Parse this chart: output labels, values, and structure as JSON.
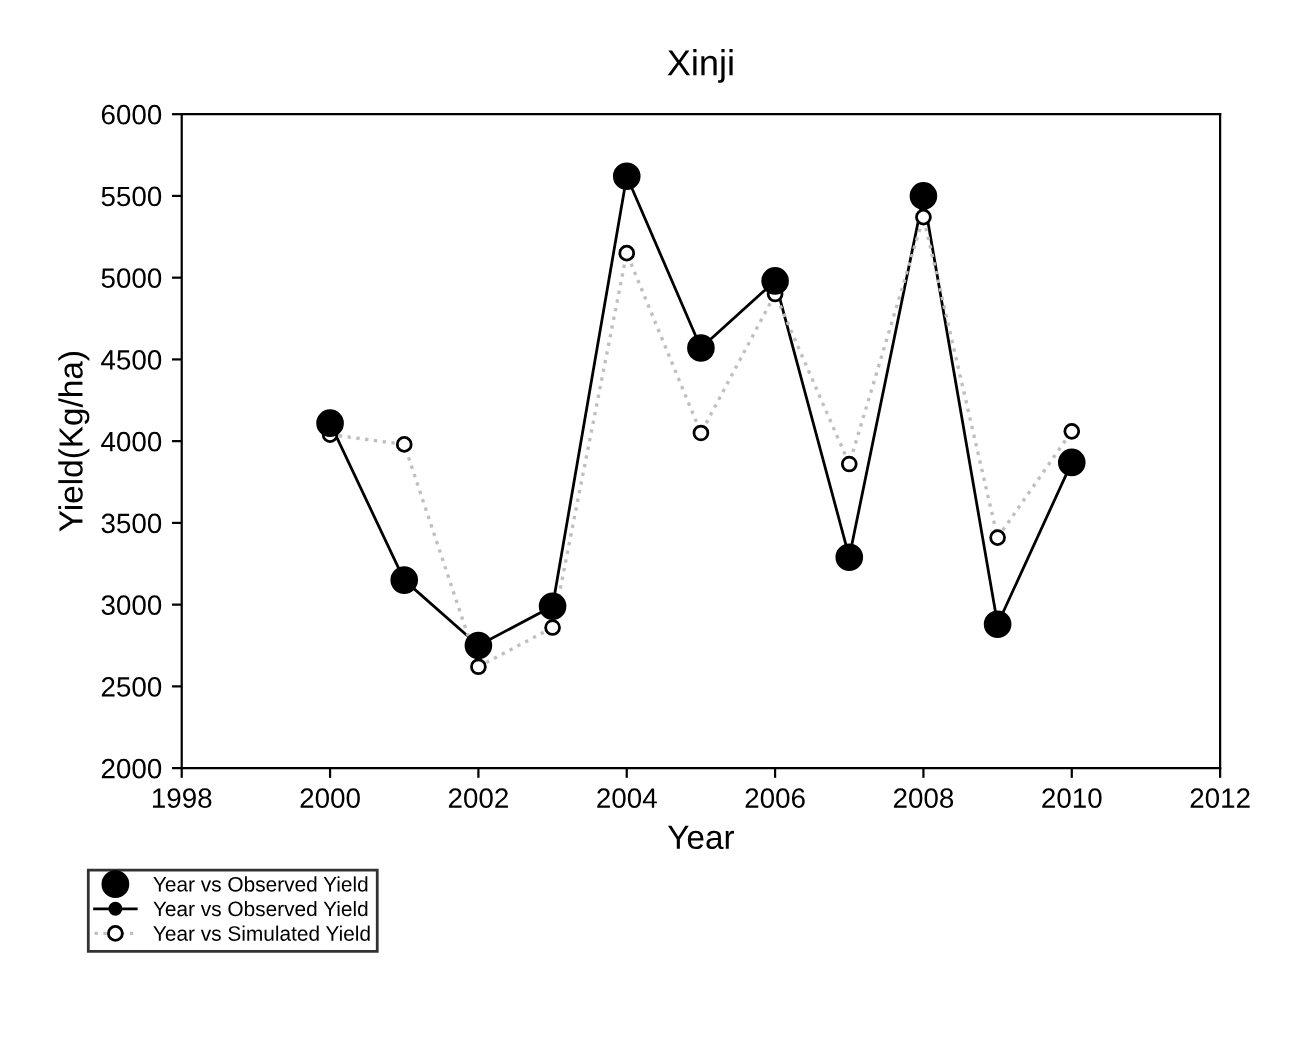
{
  "chart_data": {
    "type": "line",
    "title": "Xinji",
    "xlabel": "Year",
    "ylabel": "Yield(Kg/ha)",
    "x": [
      2000,
      2001,
      2002,
      2003,
      2004,
      2005,
      2006,
      2007,
      2008,
      2009,
      2010
    ],
    "xlim": [
      1998,
      2012
    ],
    "xticks": [
      1998,
      2000,
      2002,
      2004,
      2006,
      2008,
      2010,
      2012
    ],
    "ylim": [
      2000,
      6000
    ],
    "yticks": [
      2000,
      2500,
      3000,
      3500,
      4000,
      4500,
      5000,
      5500,
      6000
    ],
    "grid": false,
    "legend": "bottom left",
    "series": [
      {
        "name": "Year vs Observed Yield",
        "type": "scatter",
        "marker": "circle",
        "color": "#000000",
        "values": [
          4110,
          3150,
          2750,
          2990,
          5620,
          4570,
          4980,
          3290,
          5500,
          2880,
          3870
        ]
      },
      {
        "name": "Year vs Observed Yield",
        "marker": "circle",
        "line_style": "solid",
        "color": "#000000",
        "values": [
          4110,
          3150,
          2750,
          2990,
          5620,
          4570,
          4980,
          3290,
          5500,
          2880,
          3870
        ]
      },
      {
        "name": "Year vs Simulated Yield",
        "marker": "circle",
        "line_style": "dotted",
        "color": "#bfbfbf",
        "values": [
          4040,
          3980,
          2620,
          2860,
          5150,
          4050,
          4900,
          3860,
          5370,
          3410,
          4060
        ]
      }
    ]
  }
}
